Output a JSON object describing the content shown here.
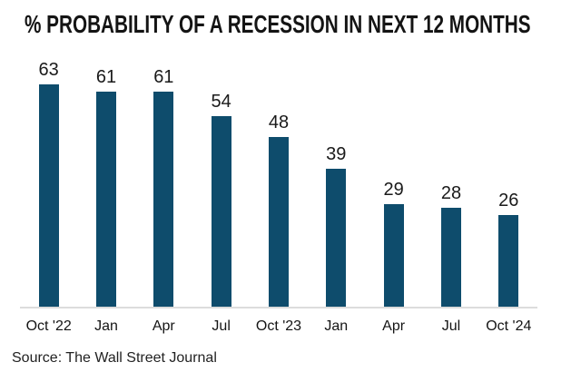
{
  "chart": {
    "title": "% PROBABILITY OF A RECESSION IN NEXT 12 MONTHS",
    "source": "Source: The Wall Street Journal"
  },
  "chart_data": {
    "type": "bar",
    "title": "% PROBABILITY OF A RECESSION IN NEXT 12 MONTHS",
    "categories": [
      "Oct '22",
      "Jan",
      "Apr",
      "Jul",
      "Oct '23",
      "Jan",
      "Apr",
      "Jul",
      "Oct '24"
    ],
    "values": [
      63,
      61,
      61,
      54,
      48,
      39,
      29,
      28,
      26
    ],
    "xlabel": "",
    "ylabel": "",
    "ylim": [
      0,
      63
    ],
    "grid": false,
    "legend": false,
    "data_labels": true,
    "bar_color": "#0e4c6c",
    "axis_line_color": "#dcdcdc",
    "text_color": "#1a1a1a",
    "source": "Source: The Wall Street Journal"
  }
}
